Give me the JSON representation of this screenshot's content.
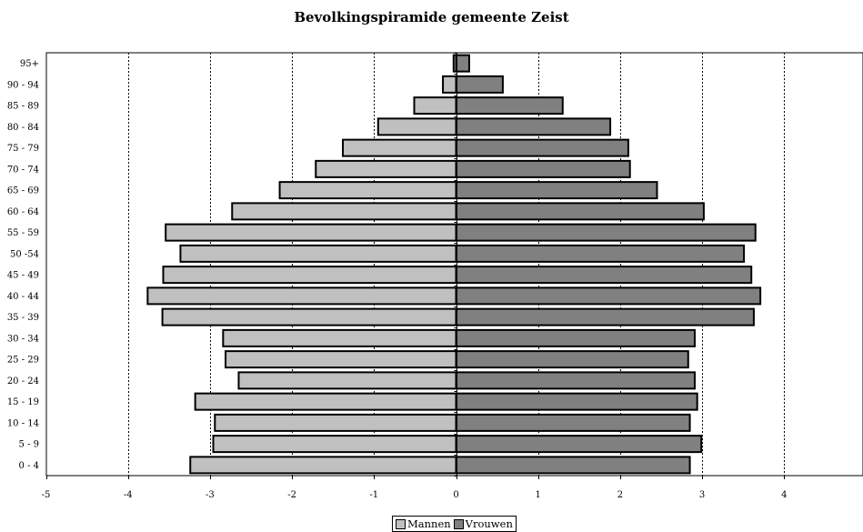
{
  "chart_data": {
    "type": "bar",
    "orientation": "horizontal",
    "title": "Bevolkingspiramide gemeente Zeist",
    "categories": [
      "0 - 4",
      "5 - 9",
      "10 - 14",
      "15 - 19",
      "20 - 24",
      "25 - 29",
      "30 - 34",
      "35 - 39",
      "40 - 44",
      "45 - 49",
      "50 -54",
      "55 - 59",
      "60 - 64",
      "65 - 69",
      "70 - 74",
      "75 - 79",
      "80 - 84",
      "85 - 89",
      "90 - 94",
      "95+"
    ],
    "series": [
      {
        "name": "Mannen",
        "color": "#c0c0c0",
        "values": [
          -3.24,
          -2.96,
          -2.94,
          -3.18,
          -2.65,
          -2.81,
          -2.84,
          -3.58,
          -3.76,
          -3.57,
          -3.36,
          -3.54,
          -2.73,
          -2.15,
          -1.71,
          -1.38,
          -0.95,
          -0.51,
          -0.16,
          -0.03
        ]
      },
      {
        "name": "Vrouwen",
        "color": "#808080",
        "values": [
          2.85,
          2.99,
          2.85,
          2.94,
          2.91,
          2.83,
          2.91,
          3.63,
          3.71,
          3.6,
          3.51,
          3.65,
          3.02,
          2.45,
          2.12,
          2.1,
          1.88,
          1.3,
          0.57,
          0.16
        ]
      }
    ],
    "xlim": [
      -5,
      5
    ],
    "xticks": [
      "-5",
      "-4",
      "-3",
      "-2",
      "-1",
      "0",
      "1",
      "2",
      "3",
      "4"
    ],
    "xtick_values": [
      -5,
      -4,
      -3,
      -2,
      -1,
      0,
      1,
      2,
      3,
      4
    ],
    "grid": "vertical dashed",
    "legend_position": "bottom"
  }
}
